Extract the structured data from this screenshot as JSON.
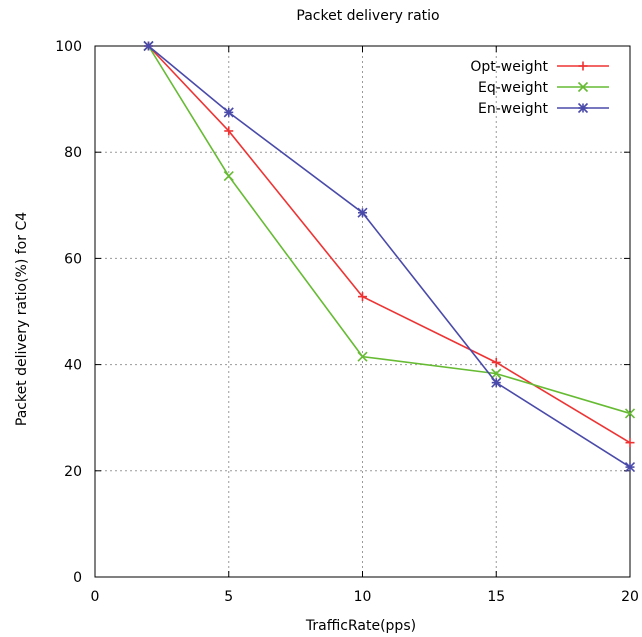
{
  "chart_data": {
    "type": "line",
    "title": "Packet delivery ratio",
    "xlabel": "TrafficRate(pps)",
    "ylabel": "Packet delivery ratio(%) for C4",
    "xlim": [
      0,
      20
    ],
    "ylim": [
      0,
      100
    ],
    "xticks": [
      0,
      5,
      10,
      15,
      20
    ],
    "yticks": [
      0,
      20,
      40,
      60,
      80,
      100
    ],
    "grid": true,
    "legend_position": "top-right",
    "x": [
      2,
      5,
      10,
      15,
      20
    ],
    "series": [
      {
        "name": "Opt-weight",
        "values": [
          100,
          84,
          52.8,
          40.4,
          25.3
        ],
        "color": "#ee3333",
        "marker": "plus"
      },
      {
        "name": "Eq-weight",
        "values": [
          100,
          75.5,
          41.5,
          38.3,
          30.8
        ],
        "color": "#66bb33",
        "marker": "cross"
      },
      {
        "name": "En-weight",
        "values": [
          100,
          87.5,
          68.6,
          36.6,
          20.7
        ],
        "color": "#4a4aaa",
        "marker": "star"
      }
    ]
  }
}
